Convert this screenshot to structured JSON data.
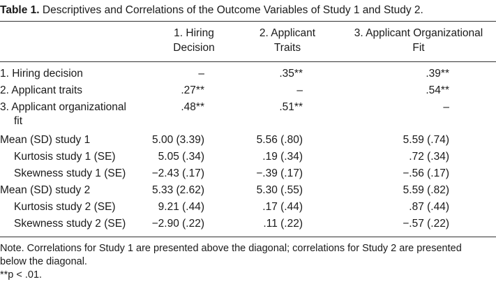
{
  "caption": {
    "number": "Table 1.",
    "text": "Descriptives and Correlations of the Outcome Variables of Study 1 and Study 2."
  },
  "headers": [
    [
      "1. Hiring",
      "Decision"
    ],
    [
      "2. Applicant",
      "Traits"
    ],
    [
      "3. Applicant Organizational",
      "Fit"
    ]
  ],
  "rows": [
    {
      "label": "1. Hiring decision",
      "cells": [
        "–",
        ".35**",
        ".39**"
      ]
    },
    {
      "label": "2. Applicant traits",
      "cells": [
        ".27**",
        "–",
        ".54**"
      ]
    },
    {
      "label": "3. Applicant organizational",
      "label2": "fit",
      "cells": [
        ".48**",
        ".51**",
        "–"
      ]
    },
    {
      "label": "Mean (SD) study 1",
      "cells": [
        "5.00 (3.39)",
        "5.56 (.80)",
        "5.59 (.74)"
      ]
    },
    {
      "label": "Kurtosis study 1 (SE)",
      "cells": [
        "5.05 (.34)",
        ".19 (.34)",
        ".72 (.34)"
      ]
    },
    {
      "label": "Skewness study 1 (SE)",
      "cells": [
        "−2.43 (.17)",
        "−.39 (.17)",
        "−.56 (.17)"
      ]
    },
    {
      "label": "Mean (SD) study 2",
      "cells": [
        "5.33 (2.62)",
        "5.30 (.55)",
        "5.59 (.82)"
      ]
    },
    {
      "label": "Kurtosis study 2 (SE)",
      "cells": [
        "9.21 (.44)",
        ".17 (.44)",
        ".87 (.44)"
      ]
    },
    {
      "label": "Skewness study 2 (SE)",
      "cells": [
        "−2.90 (.22)",
        ".11 (.22)",
        "−.57 (.22)"
      ]
    }
  ],
  "notes": {
    "line1": "Note. Correlations for Study 1 are presented above the diagonal; correlations for Study 2 are presented",
    "line2": "below the diagonal.",
    "line3": "**p < .01."
  }
}
